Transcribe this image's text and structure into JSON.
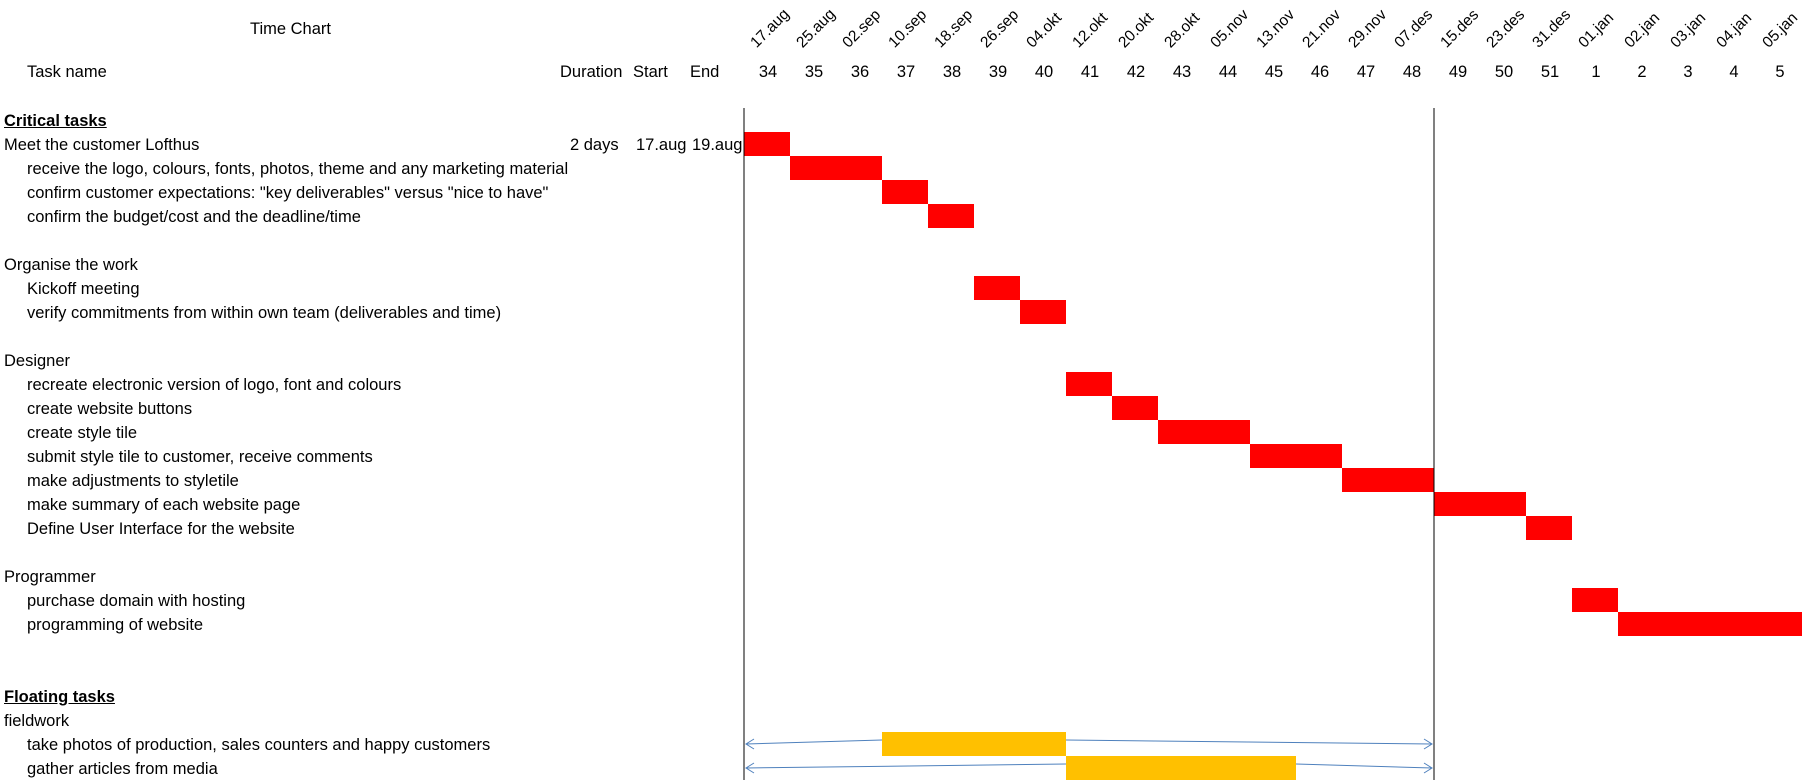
{
  "header": {
    "title": "Time Chart",
    "task_col": "Task name",
    "duration_col": "Duration",
    "start_col": "Start",
    "end_col": "End"
  },
  "chart_data": {
    "type": "gantt",
    "title": "Time Chart",
    "timeline": {
      "dates": [
        "17.aug",
        "25.aug",
        "02.sep",
        "10.sep",
        "18.sep",
        "26.sep",
        "04.okt",
        "12.okt",
        "20.okt",
        "28.okt",
        "05.nov",
        "13.nov",
        "21.nov",
        "29.nov",
        "07.des",
        "15.des",
        "23.des",
        "31.des",
        "01.jan",
        "02.jan",
        "03.jan",
        "04.jan",
        "05.jan"
      ],
      "weeks": [
        "34",
        "35",
        "36",
        "37",
        "38",
        "39",
        "40",
        "41",
        "42",
        "43",
        "44",
        "45",
        "46",
        "47",
        "48",
        "49",
        "50",
        "51",
        "1",
        "2",
        "3",
        "4",
        "5"
      ]
    },
    "colors": {
      "critical": "#ff0000",
      "floating": "#ffc000",
      "float_arrow": "#4f81bd",
      "marker_line": "#000000"
    },
    "marker_lines": [
      "17.aug",
      "15.des"
    ],
    "rows": [
      {
        "label": "Critical tasks",
        "kind": "section"
      },
      {
        "label": "Meet the customer Lofthus",
        "kind": "group",
        "duration": "2 days",
        "start": "17.aug",
        "end": "19.aug",
        "bar": {
          "start": "17.aug",
          "end": "25.aug",
          "type": "critical"
        }
      },
      {
        "label": "receive the logo, colours, fonts, photos, theme and any marketing material",
        "kind": "task",
        "bar": {
          "start": "25.aug",
          "end": "10.sep",
          "type": "critical"
        }
      },
      {
        "label": "confirm customer expectations: \"key deliverables\" versus \"nice to have\"",
        "kind": "task",
        "bar": {
          "start": "10.sep",
          "end": "18.sep",
          "type": "critical"
        }
      },
      {
        "label": "confirm the budget/cost and the deadline/time",
        "kind": "task",
        "bar": {
          "start": "18.sep",
          "end": "26.sep",
          "type": "critical"
        }
      },
      {
        "label": "",
        "kind": "blank"
      },
      {
        "label": "Organise the work",
        "kind": "group"
      },
      {
        "label": "Kickoff meeting",
        "kind": "task",
        "bar": {
          "start": "26.sep",
          "end": "04.okt",
          "type": "critical"
        }
      },
      {
        "label": "verify commitments from within own team (deliverables and time)",
        "kind": "task",
        "bar": {
          "start": "04.okt",
          "end": "12.okt",
          "type": "critical"
        }
      },
      {
        "label": "",
        "kind": "blank"
      },
      {
        "label": "Designer",
        "kind": "group"
      },
      {
        "label": "recreate electronic version of logo, font and colours",
        "kind": "task",
        "bar": {
          "start": "12.okt",
          "end": "20.okt",
          "type": "critical"
        }
      },
      {
        "label": "create website buttons",
        "kind": "task",
        "bar": {
          "start": "20.okt",
          "end": "28.okt",
          "type": "critical"
        }
      },
      {
        "label": "create style tile",
        "kind": "task",
        "bar": {
          "start": "28.okt",
          "end": "13.nov",
          "type": "critical"
        }
      },
      {
        "label": "submit style tile to customer, receive comments",
        "kind": "task",
        "bar": {
          "start": "13.nov",
          "end": "29.nov",
          "type": "critical"
        }
      },
      {
        "label": "make adjustments to styletile",
        "kind": "task",
        "bar": {
          "start": "29.nov",
          "end": "15.des",
          "type": "critical"
        }
      },
      {
        "label": "make summary of each website page",
        "kind": "task",
        "bar": {
          "start": "15.des",
          "end": "31.des",
          "type": "critical"
        }
      },
      {
        "label": "Define User Interface for the website",
        "kind": "task",
        "bar": {
          "start": "31.des",
          "end": "01.jan",
          "type": "critical"
        }
      },
      {
        "label": "",
        "kind": "blank"
      },
      {
        "label": "Programmer",
        "kind": "group"
      },
      {
        "label": "purchase domain with hosting",
        "kind": "task",
        "bar": {
          "start": "01.jan",
          "end": "02.jan",
          "type": "critical"
        }
      },
      {
        "label": "programming of website",
        "kind": "task",
        "bar": {
          "start": "02.jan",
          "end": "05.jan+",
          "type": "critical"
        }
      },
      {
        "label": "",
        "kind": "blank"
      },
      {
        "label": "",
        "kind": "blank"
      },
      {
        "label": "Floating tasks",
        "kind": "section"
      },
      {
        "label": "fieldwork",
        "kind": "group"
      },
      {
        "label": "take photos of production, sales counters and happy customers",
        "kind": "task",
        "bar": {
          "start": "10.sep",
          "end": "12.okt",
          "type": "floating"
        },
        "float": {
          "start": "17.aug",
          "end": "15.des"
        }
      },
      {
        "label": "gather articles from media",
        "kind": "task",
        "bar": {
          "start": "12.okt",
          "end": "21.nov",
          "type": "floating"
        },
        "float": {
          "start": "17.aug",
          "end": "15.des"
        }
      }
    ]
  }
}
